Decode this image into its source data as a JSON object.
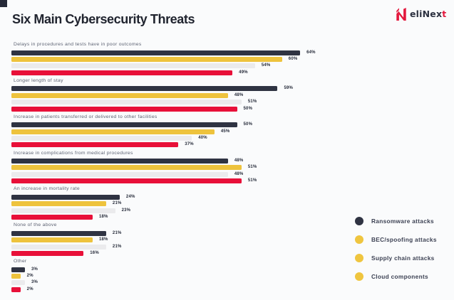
{
  "page": {
    "background": "#fafbfc",
    "corner_accent_color": "#262a38"
  },
  "header": {
    "title": "Six Main Cybersecurity Threats",
    "logo": {
      "icon": "elinext-n-icon",
      "icon_color": "#e3173c",
      "text_main": "eliNex",
      "text_accent": "t",
      "text_color": "#2c3140",
      "accent_color": "#e3173c"
    }
  },
  "chart_data": {
    "type": "bar",
    "orientation": "horizontal",
    "unit": "%",
    "xlim": [
      0,
      100
    ],
    "grid": false,
    "legend_position": "bottom-right",
    "categories": [
      "Delays in procedures and tests have in poor outcomes",
      "Longer length of stay",
      "Increase in patients transferred or delivered to other facilities",
      "Increase in complications from medical procedures",
      "An increase in mortality rate",
      "None of the above",
      "Other"
    ],
    "series": [
      {
        "name": "Ransomware attacks",
        "bar_color": "#2f3342",
        "legend_color": "#2f3342",
        "values": [
          64,
          59,
          50,
          48,
          24,
          21,
          3
        ]
      },
      {
        "name": "BEC/spoofing attacks",
        "bar_color": "#eec33d",
        "legend_color": "#efc53f",
        "values": [
          60,
          48,
          45,
          51,
          21,
          18,
          2
        ]
      },
      {
        "name": "Supply chain attacks",
        "bar_color": "#ebebed",
        "legend_color": "#efc53f",
        "values": [
          54,
          51,
          40,
          48,
          23,
          21,
          3
        ]
      },
      {
        "name": "Cloud components",
        "bar_color": "#e81039",
        "legend_color": "#efc53f",
        "values": [
          49,
          50,
          37,
          51,
          18,
          16,
          2
        ]
      }
    ]
  }
}
